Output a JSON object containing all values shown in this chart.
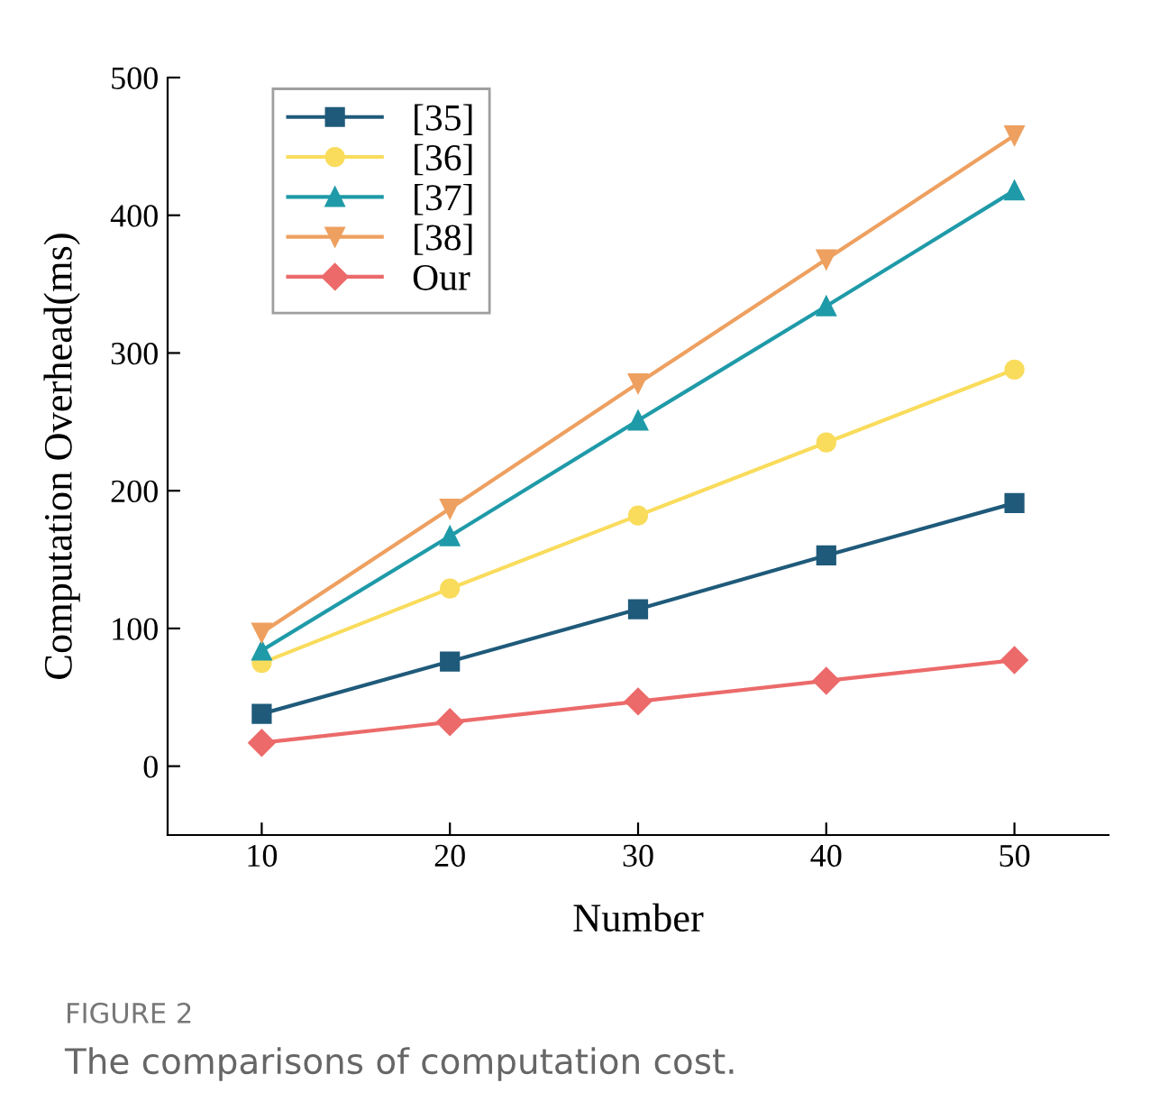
{
  "chart_data": {
    "type": "line",
    "xlabel": "Number",
    "ylabel": "Computation Overhead(ms)",
    "x": [
      10,
      20,
      30,
      40,
      50
    ],
    "series": [
      {
        "name": "[35]",
        "color": "#1f5a7a",
        "marker": "square",
        "values": [
          38,
          76,
          114,
          153,
          191
        ]
      },
      {
        "name": "[36]",
        "color": "#f9dc5c",
        "marker": "circle",
        "values": [
          75,
          129,
          182,
          235,
          288
        ]
      },
      {
        "name": "[37]",
        "color": "#1f9aa8",
        "marker": "triangle",
        "values": [
          84,
          167,
          251,
          334,
          418
        ]
      },
      {
        "name": "[38]",
        "color": "#eea060",
        "marker": "triangle_down",
        "values": [
          97,
          187,
          278,
          368,
          458
        ]
      },
      {
        "name": "Our",
        "color": "#ec6a6a",
        "marker": "diamond",
        "values": [
          17,
          32,
          47,
          62,
          77
        ]
      }
    ],
    "xlim": [
      5,
      55
    ],
    "xticks": [
      10,
      20,
      30,
      40,
      50
    ],
    "ylim": [
      -50,
      500
    ],
    "yticks": [
      0,
      100,
      200,
      300,
      400,
      500
    ],
    "grid": false,
    "legend": "top left",
    "line_style": "solid",
    "annotations": [
      "FIGURE 2",
      "The comparisons of computation cost."
    ]
  }
}
